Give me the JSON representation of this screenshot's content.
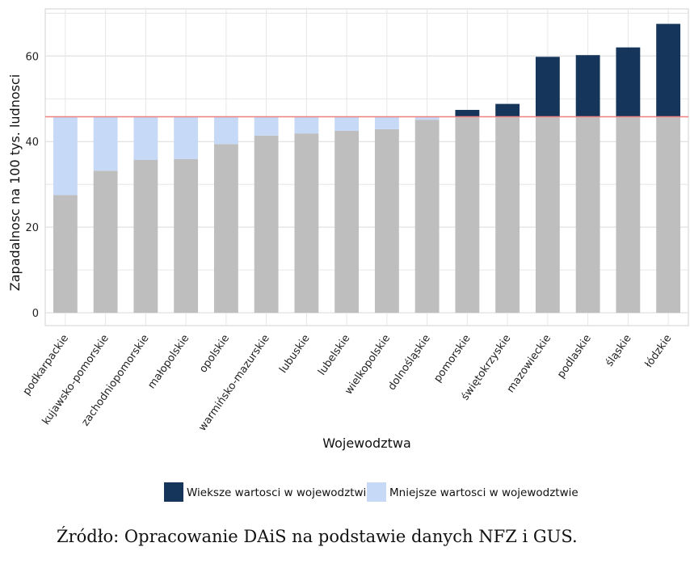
{
  "chart_data": {
    "type": "bar",
    "stacked": true,
    "title": "",
    "xlabel": "Wojewodztwa",
    "ylabel": "Zapadalnosc na 100 tys. ludnosci",
    "ylim": [
      -3,
      71
    ],
    "yticks": [
      0,
      20,
      40,
      60
    ],
    "grid": true,
    "legend_position": "bottom",
    "reference_line": {
      "value": 45.8,
      "color": "#f08080"
    },
    "categories": [
      "podkarpackie",
      "kujawsko-pomorskie",
      "zachodniopomorskie",
      "małopolskie",
      "opolskie",
      "warmińsko-mazurskie",
      "lubuskie",
      "lubelskie",
      "wielkopolskie",
      "dolnośląskie",
      "pomorskie",
      "świętokrzyskie",
      "mazowieckie",
      "podlaskie",
      "śląskie",
      "łódzkie"
    ],
    "values": [
      27.5,
      33.2,
      35.7,
      35.9,
      39.4,
      41.4,
      41.9,
      42.5,
      42.9,
      45.1,
      47.4,
      48.8,
      59.8,
      60.2,
      62.0,
      67.5
    ],
    "colors": {
      "base": "#bebebe",
      "above": "#15355a",
      "below": "#c6d9f7",
      "reference": "#f08080"
    },
    "series": [
      {
        "name": "Wieksze wartosci w wojewodztwie",
        "color": "#15355a"
      },
      {
        "name": "Mniejsze wartosci w wojewodztwie",
        "color": "#c6d9f7"
      }
    ]
  },
  "source_note": "Źródło: Opracowanie DAiS na podstawie danych NFZ i GUS."
}
